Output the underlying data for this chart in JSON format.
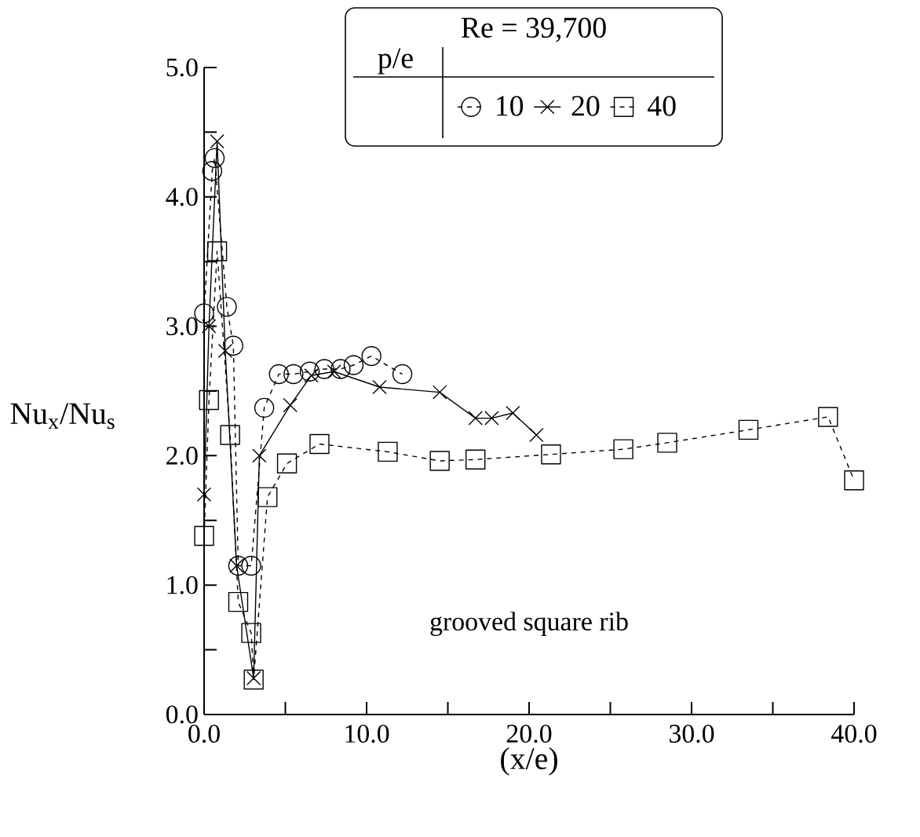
{
  "chart_data": {
    "type": "line",
    "xlabel": "(x/e)",
    "ylabel": "Nu$_{x}$/Nu$_{s}$",
    "legend_title": "Re = 39,700",
    "legend": "top right",
    "grid": false,
    "annotations": [
      "grooved square rib",
      "p/e"
    ],
    "xlim": [
      0,
      40
    ],
    "ylim": [
      0,
      5
    ],
    "xticks": [
      {
        "value": 0,
        "label": "0.0"
      },
      {
        "value": 5,
        "label": null
      },
      {
        "value": 10,
        "label": "10.0"
      },
      {
        "value": 15,
        "label": null
      },
      {
        "value": 20,
        "label": "20.0"
      },
      {
        "value": 25,
        "label": null
      },
      {
        "value": 30,
        "label": "30.0"
      },
      {
        "value": 35,
        "label": null
      },
      {
        "value": 40,
        "label": "40.0"
      }
    ],
    "yticks": [
      {
        "value": 0,
        "label": "0.0"
      },
      {
        "value": 0.5,
        "label": null
      },
      {
        "value": 1,
        "label": "1.0"
      },
      {
        "value": 1.5,
        "label": null
      },
      {
        "value": 2,
        "label": "2.0"
      },
      {
        "value": 2.5,
        "label": null
      },
      {
        "value": 3,
        "label": "3.0"
      },
      {
        "value": 3.5,
        "label": null
      },
      {
        "value": 4,
        "label": "4.0"
      },
      {
        "value": 4.5,
        "label": null
      },
      {
        "value": 5,
        "label": "5.0"
      }
    ],
    "series": [
      {
        "name": "10",
        "color": "#000000",
        "marker": "circle",
        "line_style": "dashed",
        "x": [
          0.0,
          0.5,
          0.65,
          1.4,
          1.8,
          2.1,
          2.9,
          3.7,
          4.6,
          5.5,
          6.5,
          7.4,
          8.4,
          9.2,
          10.3,
          12.2
        ],
        "values": [
          3.1,
          4.2,
          4.3,
          3.15,
          2.85,
          1.15,
          1.15,
          2.37,
          2.63,
          2.63,
          2.65,
          2.67,
          2.67,
          2.7,
          2.77,
          2.63
        ]
      },
      {
        "name": "20",
        "color": "#000000",
        "marker": "cross",
        "line_style": "solid",
        "x": [
          0.0,
          0.3,
          0.8,
          1.3,
          2.0,
          3.05,
          3.4,
          5.3,
          6.6,
          8.0,
          10.8,
          14.5,
          16.7,
          17.7,
          19.0,
          20.45
        ],
        "values": [
          1.7,
          3.0,
          4.43,
          2.81,
          1.15,
          0.28,
          2.0,
          2.39,
          2.62,
          2.65,
          2.53,
          2.49,
          2.29,
          2.29,
          2.33,
          2.16
        ]
      },
      {
        "name": "40",
        "color": "#000000",
        "marker": "square",
        "line_style": "dashed",
        "x": [
          0.0,
          0.3,
          0.8,
          1.6,
          2.1,
          2.9,
          3.05,
          3.9,
          5.1,
          7.1,
          11.3,
          14.5,
          16.7,
          21.35,
          25.8,
          28.5,
          33.5,
          38.4,
          40.0
        ],
        "values": [
          1.38,
          2.43,
          3.58,
          2.16,
          0.87,
          0.63,
          0.27,
          1.68,
          1.94,
          2.09,
          2.03,
          1.96,
          1.97,
          2.01,
          2.05,
          2.1,
          2.2,
          2.3,
          1.81
        ]
      }
    ]
  }
}
